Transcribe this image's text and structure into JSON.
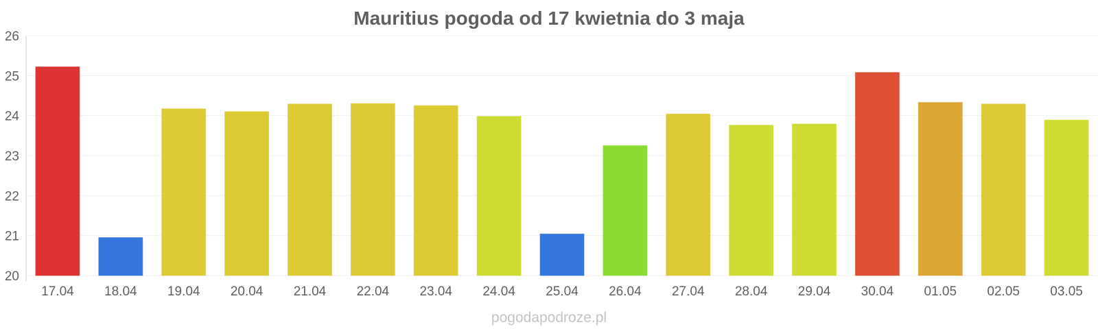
{
  "chart_data": {
    "type": "bar",
    "title": "Mauritius pogoda od 17 kwietnia do 3 maja",
    "xlabel": "",
    "ylabel": "",
    "categories": [
      "17.04",
      "18.04",
      "19.04",
      "20.04",
      "21.04",
      "22.04",
      "23.04",
      "24.04",
      "25.04",
      "26.04",
      "27.04",
      "28.04",
      "29.04",
      "30.04",
      "01.05",
      "02.05",
      "03.05"
    ],
    "values": [
      25.22,
      20.95,
      24.17,
      24.1,
      24.29,
      24.3,
      24.25,
      23.98,
      21.04,
      23.25,
      24.04,
      23.76,
      23.79,
      25.08,
      24.33,
      24.29,
      23.89
    ],
    "bar_colors": [
      "#dd3333",
      "#3476db",
      "#dbca33",
      "#dbca33",
      "#dbca33",
      "#dbca33",
      "#dbca33",
      "#cedb33",
      "#3476db",
      "#8bdb33",
      "#dbca33",
      "#cedb33",
      "#cedb33",
      "#dd5033",
      "#dba633",
      "#dbca33",
      "#cedb33"
    ],
    "ylim": [
      20,
      26
    ],
    "yticks": [
      "20",
      "21",
      "22",
      "23",
      "24",
      "25",
      "26"
    ],
    "grid": true,
    "legend": "none"
  },
  "footer": {
    "watermark": "pogodapodroze.pl"
  }
}
